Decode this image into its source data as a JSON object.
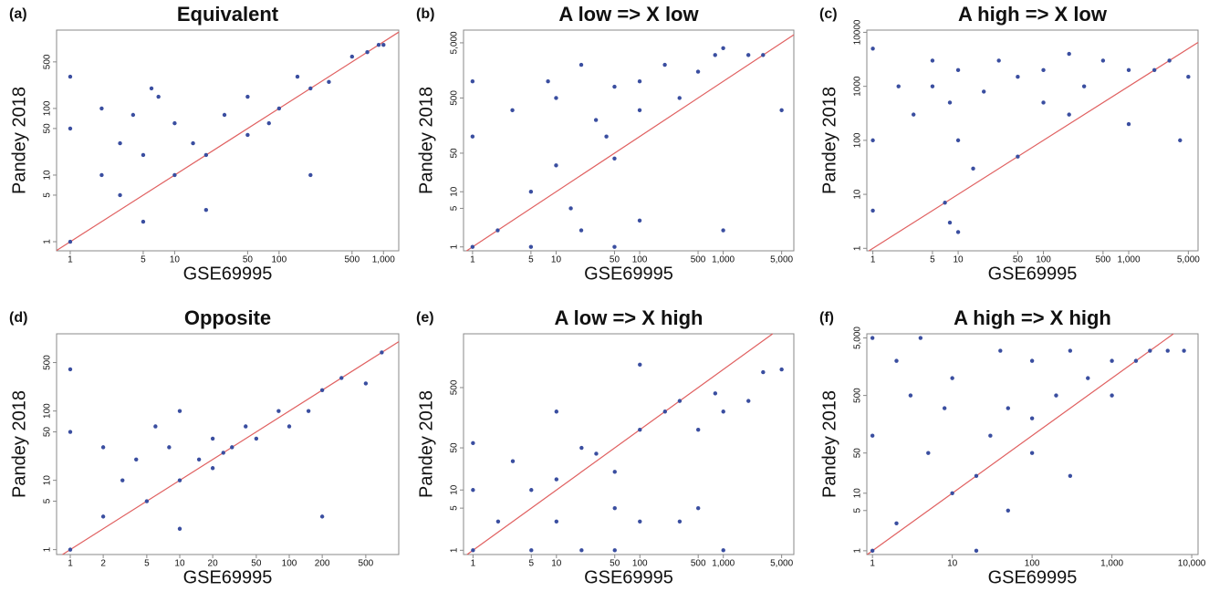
{
  "chart_data": [
    {
      "type": "scatter",
      "panel_label": "(a)",
      "title": "Equivalent",
      "x_label": "GSE69995",
      "y_label": "Pandey 2018",
      "log_scale": true,
      "color": "#3a4ea0",
      "reference_line": "y=x",
      "reference_color": "#e06060",
      "xlim": [
        0.74,
        1400
      ],
      "ylim": [
        0.73,
        1500
      ],
      "xticks": [
        1,
        5,
        10,
        50,
        100,
        500,
        {
          "value": 1000,
          "label": "1,000"
        }
      ],
      "yticks": [
        1,
        5,
        10,
        50,
        100,
        500
      ],
      "series": [
        {
          "x": [
            1,
            1,
            1,
            2,
            2,
            3,
            3,
            4,
            5,
            5,
            7,
            10,
            10,
            15,
            20,
            30,
            50,
            50,
            80,
            100,
            150,
            200,
            300,
            500,
            700,
            900,
            1000,
            20,
            200,
            6
          ],
          "y": [
            1,
            50,
            300,
            10,
            100,
            5,
            30,
            80,
            2,
            20,
            150,
            10,
            60,
            30,
            20,
            80,
            40,
            150,
            60,
            100,
            300,
            200,
            250,
            600,
            700,
            900,
            900,
            3,
            10,
            200
          ]
        }
      ]
    },
    {
      "type": "scatter",
      "panel_label": "(b)",
      "title": "A low => X low",
      "x_label": "GSE69995",
      "y_label": "Pandey 2018",
      "log_scale": true,
      "color": "#3a4ea0",
      "reference_line": "y=x",
      "reference_color": "#e06060",
      "xlim": [
        0.78,
        7000
      ],
      "ylim": [
        0.85,
        8500
      ],
      "xticks": [
        1,
        5,
        10,
        50,
        100,
        500,
        {
          "value": 1000,
          "label": "1,000"
        },
        {
          "value": 5000,
          "label": "5,000"
        }
      ],
      "yticks": [
        1,
        5,
        10,
        50,
        500,
        {
          "value": 5000,
          "label": "5,000"
        }
      ],
      "series": [
        {
          "x": [
            1,
            1,
            1,
            2,
            3,
            5,
            8,
            10,
            10,
            20,
            30,
            50,
            50,
            100,
            100,
            200,
            300,
            500,
            800,
            1000,
            2000,
            3000,
            5000,
            20,
            50,
            5,
            15,
            100,
            40,
            1000
          ],
          "y": [
            1,
            100,
            1000,
            2,
            300,
            10,
            1000,
            500,
            30,
            2000,
            200,
            800,
            40,
            1000,
            300,
            2000,
            500,
            1500,
            3000,
            4000,
            3000,
            3000,
            300,
            2,
            1,
            1,
            5,
            3,
            100,
            2
          ]
        }
      ]
    },
    {
      "type": "scatter",
      "panel_label": "(c)",
      "title": "A high => X low",
      "x_label": "GSE69995",
      "y_label": "Pandey 2018",
      "log_scale": true,
      "color": "#3a4ea0",
      "reference_line": "y=x",
      "reference_color": "#e06060",
      "xlim": [
        0.85,
        6500
      ],
      "ylim": [
        0.9,
        11000
      ],
      "xticks": [
        1,
        5,
        10,
        50,
        100,
        500,
        {
          "value": 1000,
          "label": "1,000"
        },
        {
          "value": 5000,
          "label": "5,000"
        }
      ],
      "yticks": [
        1,
        10,
        100,
        1000,
        10000
      ],
      "series": [
        {
          "x": [
            1,
            1,
            1,
            2,
            3,
            5,
            5,
            8,
            10,
            10,
            20,
            30,
            50,
            100,
            100,
            200,
            300,
            500,
            1000,
            2000,
            3000,
            5000,
            4000,
            10,
            15,
            7,
            8,
            50,
            200,
            1000
          ],
          "y": [
            5,
            100,
            5000,
            1000,
            300,
            1000,
            3000,
            500,
            2000,
            100,
            800,
            3000,
            1500,
            2000,
            500,
            4000,
            1000,
            3000,
            2000,
            2000,
            3000,
            1500,
            100,
            2,
            30,
            7,
            3,
            50,
            300,
            200
          ]
        }
      ]
    },
    {
      "type": "scatter",
      "panel_label": "(d)",
      "title": "Opposite",
      "x_label": "GSE69995",
      "y_label": "Pandey 2018",
      "log_scale": true,
      "color": "#3a4ea0",
      "reference_line": "y=x",
      "reference_color": "#e06060",
      "xlim": [
        0.75,
        1000
      ],
      "ylim": [
        0.85,
        1300
      ],
      "xticks": [
        1,
        2,
        5,
        10,
        20,
        50,
        100,
        200,
        500
      ],
      "yticks": [
        1,
        5,
        10,
        50,
        100,
        500
      ],
      "series": [
        {
          "x": [
            1,
            1,
            1,
            2,
            2,
            3,
            4,
            5,
            6,
            8,
            10,
            10,
            15,
            20,
            20,
            25,
            30,
            40,
            50,
            80,
            100,
            150,
            200,
            300,
            500,
            700,
            200,
            10
          ],
          "y": [
            1,
            50,
            400,
            3,
            30,
            10,
            20,
            5,
            60,
            30,
            10,
            100,
            20,
            15,
            40,
            25,
            30,
            60,
            40,
            100,
            60,
            100,
            200,
            300,
            250,
            700,
            3,
            2
          ]
        }
      ]
    },
    {
      "type": "scatter",
      "panel_label": "(e)",
      "title": "A low => X high",
      "x_label": "GSE69995",
      "y_label": "Pandey 2018",
      "log_scale": true,
      "color": "#3a4ea0",
      "reference_line": "y=x",
      "reference_color": "#e06060",
      "xlim": [
        0.77,
        7000
      ],
      "ylim": [
        0.85,
        3900
      ],
      "xticks": [
        1,
        5,
        10,
        50,
        100,
        500,
        {
          "value": 1000,
          "label": "1,000"
        },
        {
          "value": 5000,
          "label": "5,000"
        }
      ],
      "yticks": [
        1,
        5,
        10,
        50,
        500
      ],
      "series": [
        {
          "x": [
            1,
            1,
            1,
            2,
            3,
            5,
            5,
            10,
            10,
            20,
            30,
            50,
            50,
            100,
            100,
            200,
            300,
            500,
            800,
            1000,
            2000,
            3000,
            5000,
            100,
            500,
            1000,
            20,
            300,
            10,
            50
          ],
          "y": [
            1,
            10,
            60,
            3,
            30,
            10,
            1,
            15,
            3,
            50,
            40,
            20,
            1,
            100,
            3,
            200,
            300,
            100,
            400,
            200,
            300,
            900,
            1000,
            1200,
            5,
            1,
            1,
            3,
            200,
            5
          ]
        }
      ]
    },
    {
      "type": "scatter",
      "panel_label": "(f)",
      "title": "A high => X high",
      "x_label": "GSE69995",
      "y_label": "Pandey 2018",
      "log_scale": true,
      "color": "#3a4ea0",
      "reference_line": "y=x",
      "reference_color": "#e06060",
      "xlim": [
        0.85,
        12000
      ],
      "ylim": [
        0.86,
        5900
      ],
      "xticks": [
        1,
        10,
        100,
        {
          "value": 1000,
          "label": "1,000"
        },
        {
          "value": 10000,
          "label": "10,000"
        }
      ],
      "yticks": [
        1,
        5,
        10,
        50,
        500,
        {
          "value": 5000,
          "label": "5,000"
        }
      ],
      "series": [
        {
          "x": [
            1,
            1,
            1,
            2,
            2,
            3,
            4,
            5,
            8,
            10,
            10,
            20,
            30,
            50,
            100,
            100,
            200,
            300,
            500,
            1000,
            1000,
            2000,
            3000,
            5000,
            8000,
            300,
            50,
            40,
            100,
            20
          ],
          "y": [
            1,
            100,
            5000,
            3,
            2000,
            500,
            5000,
            50,
            300,
            10,
            1000,
            20,
            100,
            300,
            200,
            2000,
            500,
            3000,
            1000,
            2000,
            500,
            2000,
            3000,
            3000,
            3000,
            20,
            5,
            3000,
            50,
            1
          ]
        }
      ]
    }
  ]
}
